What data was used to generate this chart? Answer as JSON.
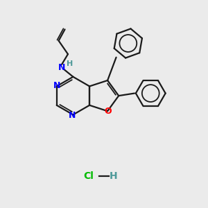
{
  "bg_color": "#ebebeb",
  "bond_color": "#1a1a1a",
  "N_color": "#0000ff",
  "O_color": "#ff0000",
  "H_color": "#4d9999",
  "Cl_color": "#00bb00",
  "figsize": [
    3.0,
    3.0
  ],
  "dpi": 100,
  "xlim": [
    0,
    10
  ],
  "ylim": [
    0,
    10
  ]
}
